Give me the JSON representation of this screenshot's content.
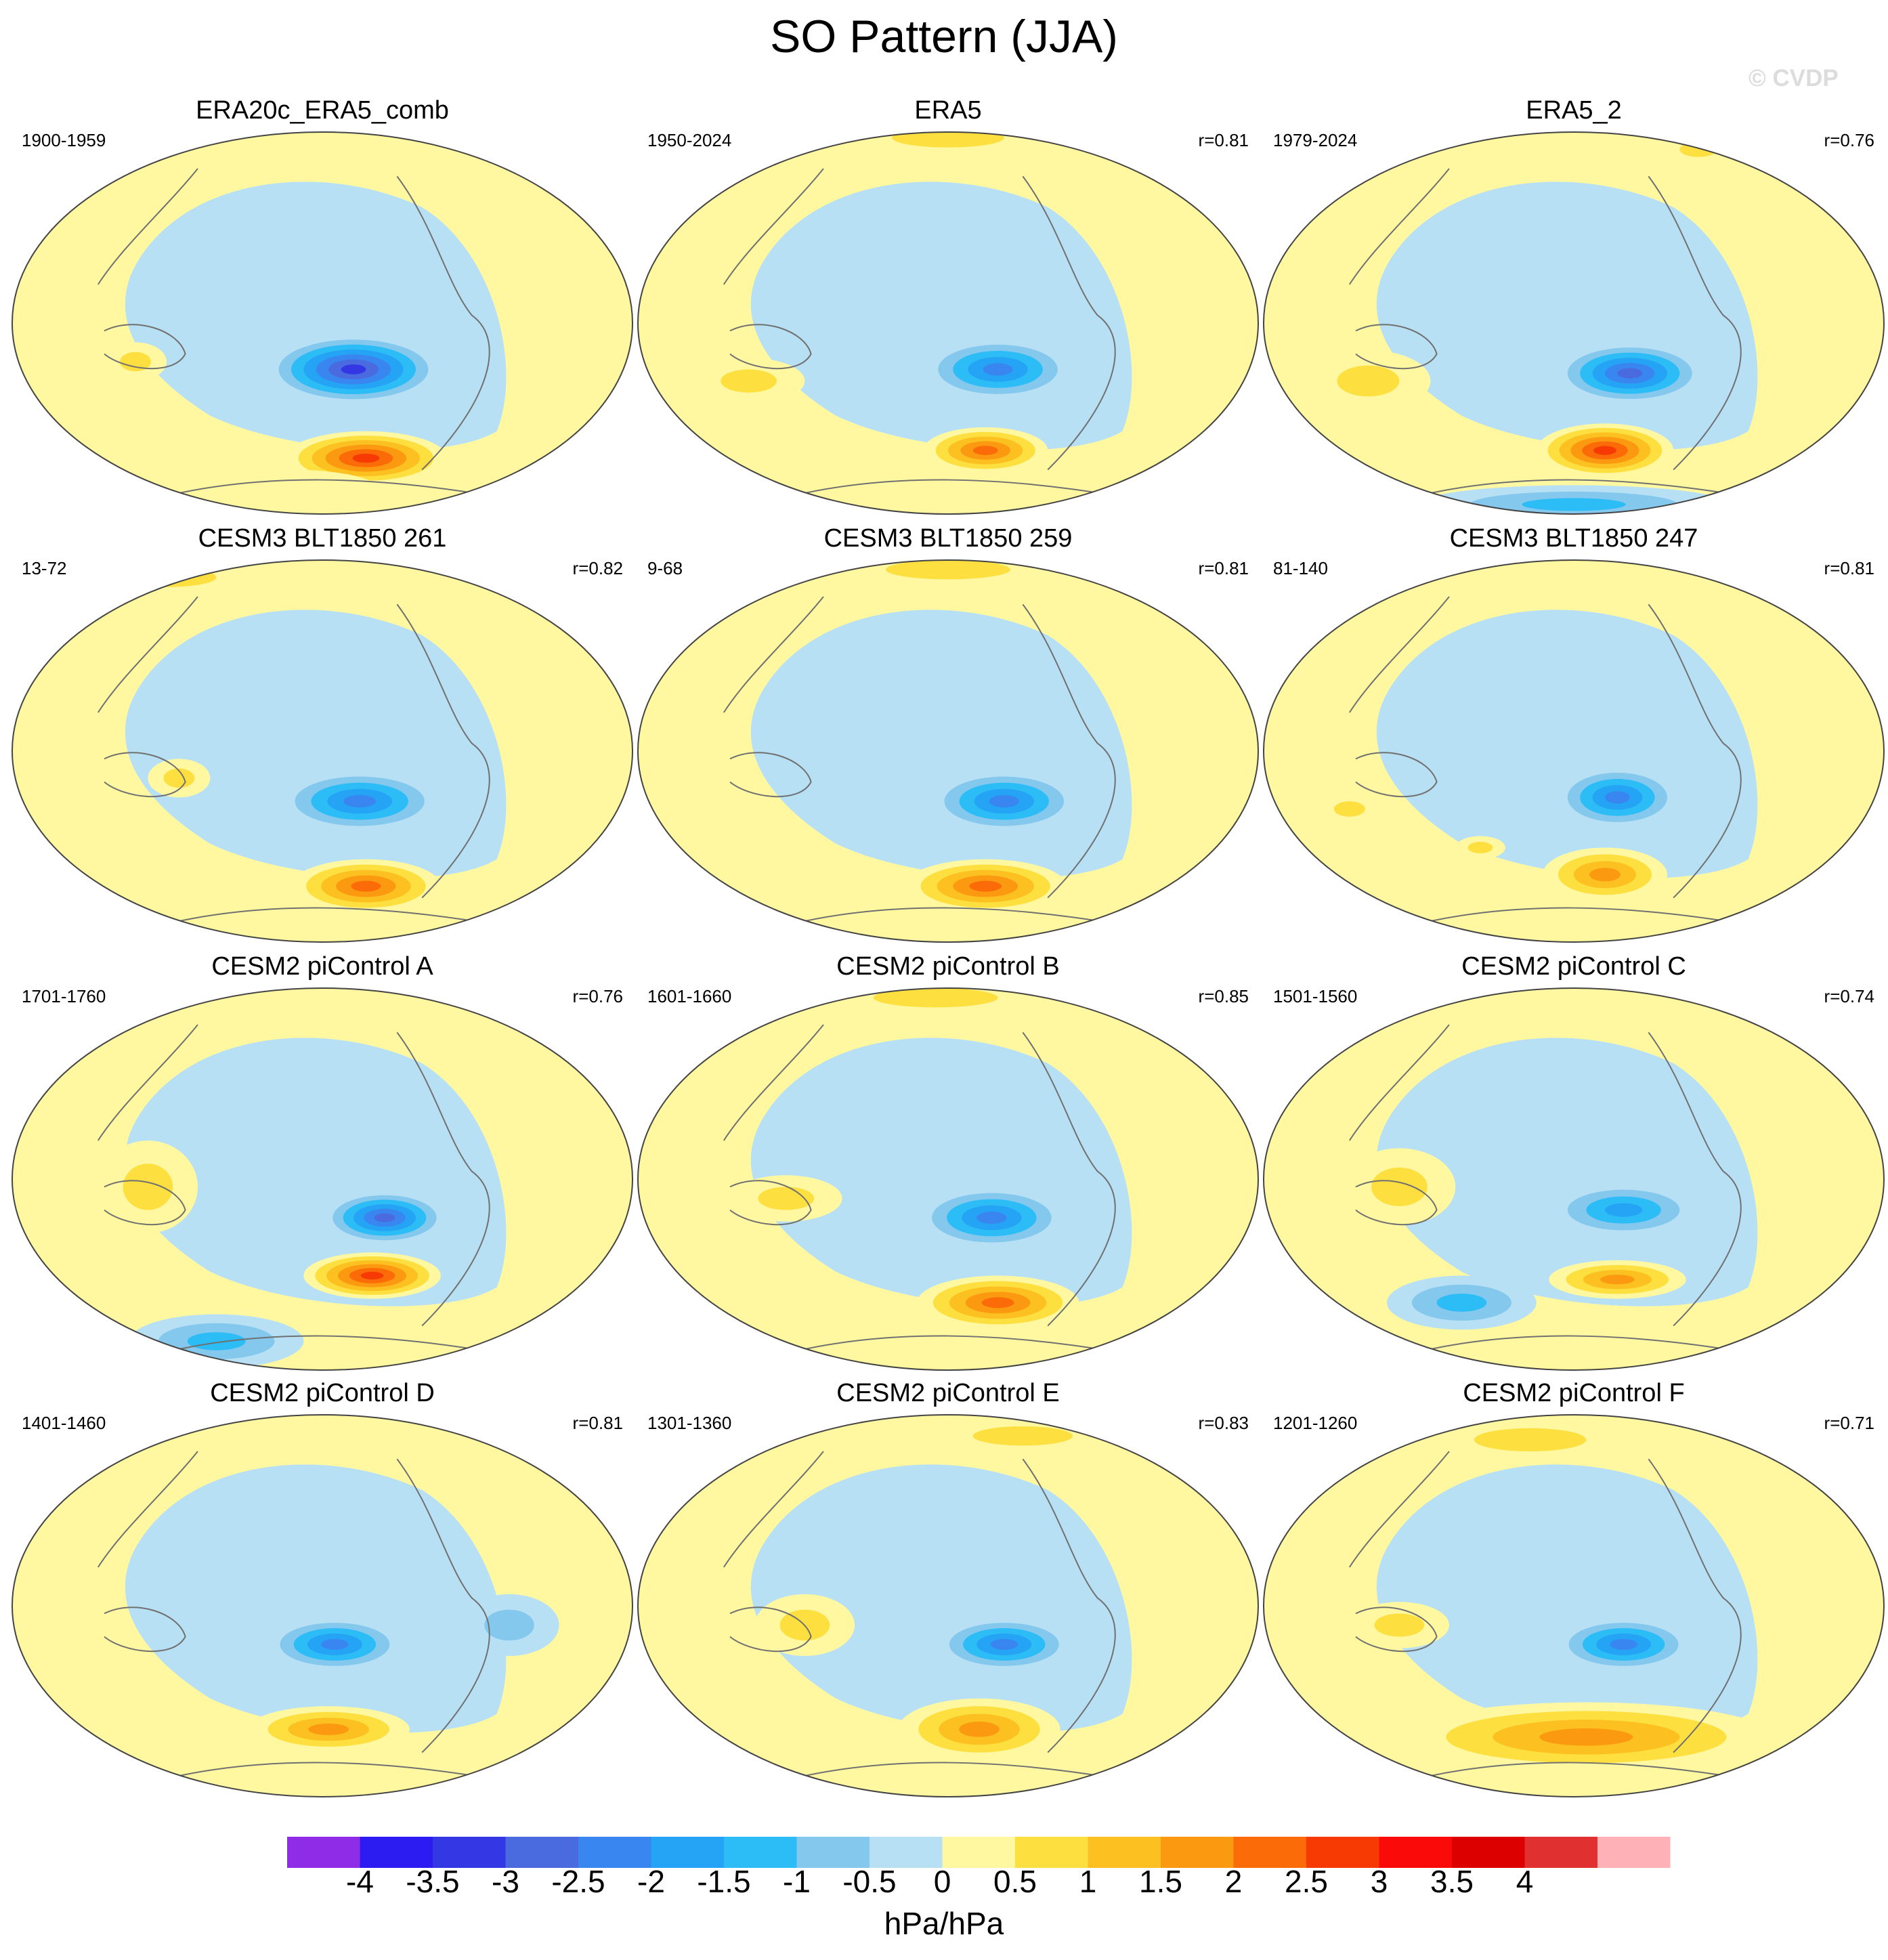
{
  "title": "SO Pattern (JJA)",
  "watermark": "© CVDP",
  "panels": [
    {
      "title": "ERA20c_ERA5_comb",
      "period": "1900-1959",
      "r": "",
      "blobs": [
        [
          0.55,
          0.62,
          0.14,
          0.09,
          -3.5
        ],
        [
          0.57,
          0.85,
          0.13,
          0.07,
          3.0
        ],
        [
          0.2,
          0.6,
          0.05,
          0.05,
          1.0
        ],
        [
          0.45,
          0.93,
          0.14,
          0.05,
          0.5
        ]
      ]
    },
    {
      "title": "ERA5",
      "period": "1950-2024",
      "r": "r=0.81",
      "blobs": [
        [
          0.58,
          0.62,
          0.12,
          0.08,
          -2.2
        ],
        [
          0.56,
          0.83,
          0.1,
          0.06,
          2.5
        ],
        [
          0.18,
          0.65,
          0.09,
          0.06,
          1.0
        ],
        [
          0.5,
          0.02,
          0.18,
          0.05,
          1.0
        ]
      ]
    },
    {
      "title": "ERA5_2",
      "period": "1979-2024",
      "r": "r=0.76",
      "blobs": [
        [
          0.59,
          0.63,
          0.12,
          0.08,
          -2.7
        ],
        [
          0.55,
          0.83,
          0.11,
          0.07,
          2.7
        ],
        [
          0.17,
          0.65,
          0.1,
          0.08,
          1.0
        ],
        [
          0.5,
          0.97,
          0.25,
          0.05,
          -1.5
        ],
        [
          0.7,
          0.05,
          0.06,
          0.04,
          1.0
        ]
      ]
    },
    {
      "title": "CESM3 BLT1850 261",
      "period": "13-72",
      "r": "r=0.82",
      "blobs": [
        [
          0.56,
          0.63,
          0.13,
          0.08,
          -2.2
        ],
        [
          0.57,
          0.85,
          0.12,
          0.07,
          2.3
        ],
        [
          0.27,
          0.57,
          0.05,
          0.05,
          1.0
        ],
        [
          0.25,
          0.05,
          0.16,
          0.05,
          1.0
        ]
      ]
    },
    {
      "title": "CESM3 BLT1850 259",
      "period": "9-68",
      "r": "r=0.81",
      "blobs": [
        [
          0.59,
          0.63,
          0.12,
          0.08,
          -2.2
        ],
        [
          0.56,
          0.85,
          0.13,
          0.07,
          2.3
        ],
        [
          0.5,
          0.03,
          0.2,
          0.05,
          1.0
        ]
      ]
    },
    {
      "title": "CESM3 BLT1850 247",
      "period": "81-140",
      "r": "r=0.81",
      "blobs": [
        [
          0.57,
          0.62,
          0.1,
          0.08,
          -2.1
        ],
        [
          0.55,
          0.82,
          0.1,
          0.07,
          2.0
        ],
        [
          0.14,
          0.65,
          0.05,
          0.04,
          1.0
        ],
        [
          0.35,
          0.75,
          0.04,
          0.03,
          1.0
        ]
      ]
    },
    {
      "title": "CESM2 piControl A",
      "period": "1701-1760",
      "r": "r=0.76",
      "blobs": [
        [
          0.6,
          0.6,
          0.1,
          0.07,
          -2.6
        ],
        [
          0.58,
          0.75,
          0.11,
          0.06,
          3.0
        ],
        [
          0.22,
          0.52,
          0.08,
          0.12,
          1.0
        ],
        [
          0.33,
          0.92,
          0.14,
          0.07,
          -1.5
        ]
      ]
    },
    {
      "title": "CESM2 piControl B",
      "period": "1601-1660",
      "r": "r=0.85",
      "blobs": [
        [
          0.57,
          0.6,
          0.12,
          0.08,
          -2.2
        ],
        [
          0.58,
          0.82,
          0.13,
          0.07,
          2.3
        ],
        [
          0.24,
          0.55,
          0.09,
          0.06,
          1.0
        ],
        [
          0.48,
          0.03,
          0.2,
          0.05,
          1.0
        ]
      ]
    },
    {
      "title": "CESM2 piControl C",
      "period": "1501-1560",
      "r": "r=0.74",
      "blobs": [
        [
          0.58,
          0.58,
          0.12,
          0.07,
          -2.0
        ],
        [
          0.57,
          0.76,
          0.11,
          0.05,
          1.6
        ],
        [
          0.22,
          0.52,
          0.09,
          0.1,
          1.0
        ],
        [
          0.32,
          0.82,
          0.12,
          0.07,
          -1.2
        ]
      ]
    },
    {
      "title": "CESM2 piControl D",
      "period": "1401-1460",
      "r": "r=0.81",
      "blobs": [
        [
          0.52,
          0.6,
          0.11,
          0.07,
          -2.2
        ],
        [
          0.51,
          0.82,
          0.13,
          0.06,
          1.7
        ],
        [
          0.8,
          0.55,
          0.08,
          0.08,
          -1.0
        ]
      ]
    },
    {
      "title": "CESM2 piControl E",
      "period": "1301-1360",
      "r": "r=0.83",
      "blobs": [
        [
          0.59,
          0.6,
          0.11,
          0.07,
          -2.2
        ],
        [
          0.55,
          0.82,
          0.13,
          0.08,
          2.0
        ],
        [
          0.27,
          0.55,
          0.08,
          0.08,
          1.0
        ],
        [
          0.62,
          0.06,
          0.16,
          0.05,
          1.0
        ]
      ]
    },
    {
      "title": "CESM2 piControl F",
      "period": "1201-1260",
      "r": "r=0.71",
      "blobs": [
        [
          0.58,
          0.6,
          0.11,
          0.07,
          -2.2
        ],
        [
          0.52,
          0.84,
          0.3,
          0.09,
          2.0
        ],
        [
          0.22,
          0.55,
          0.08,
          0.06,
          1.0
        ],
        [
          0.43,
          0.07,
          0.18,
          0.06,
          1.0
        ]
      ]
    }
  ],
  "colorbar": {
    "colors": [
      "#8e2ce8",
      "#2c1cf2",
      "#3438e4",
      "#4a6ae0",
      "#3a86f0",
      "#25a3f4",
      "#2cbcf6",
      "#84c8ee",
      "#b8e0f4",
      "#fff8a0",
      "#fde040",
      "#fcc020",
      "#fb9a10",
      "#fb6c08",
      "#f73a04",
      "#fb0a0a",
      "#dc0000",
      "#e03030",
      "#feb2b8"
    ],
    "labels": [
      "-4",
      "-3.5",
      "-3",
      "-2.5",
      "-2",
      "-1.5",
      "-1",
      "-0.5",
      "0",
      "0.5",
      "1",
      "1.5",
      "2",
      "2.5",
      "3",
      "3.5",
      "4"
    ],
    "units": "hPa/hPa"
  }
}
